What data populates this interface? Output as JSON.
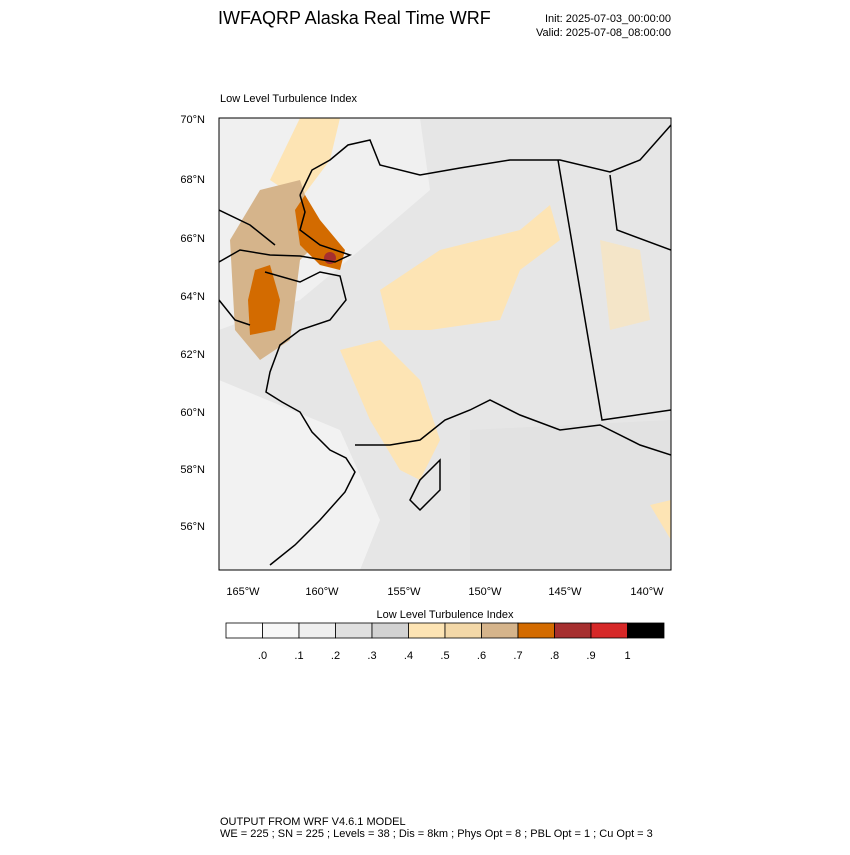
{
  "header": {
    "title": "IWFAQRP Alaska Real Time WRF",
    "init": "Init: 2025-07-03_00:00:00",
    "valid": "Valid: 2025-07-08_08:00:00"
  },
  "map": {
    "title": "Low Level Turbulence Index",
    "lat_labels": [
      "70°N",
      "68°N",
      "66°N",
      "64°N",
      "62°N",
      "60°N",
      "58°N",
      "56°N"
    ],
    "lon_labels": [
      "165°W",
      "160°W",
      "155°W",
      "150°W",
      "145°W",
      "140°W"
    ]
  },
  "colorbar": {
    "title": "Low Level Turbulence Index",
    "colors": [
      "#ffffff",
      "#f7f7f7",
      "#efefef",
      "#e0e0e0",
      "#d2d2d2",
      "#fde4b4",
      "#f3d8a8",
      "#d5b48b",
      "#d36b00",
      "#a62f2f",
      "#d62828",
      "#000000"
    ],
    "labels": [
      ".0",
      ".1",
      ".2",
      ".3",
      ".4",
      ".5",
      ".6",
      ".7",
      ".8",
      ".9",
      "1"
    ]
  },
  "footer": {
    "line1": "OUTPUT FROM WRF V4.6.1 MODEL",
    "line2": "WE = 225 ; SN = 225 ; Levels = 38 ; Dis = 8km ; Phys Opt = 8 ; PBL Opt = 1 ; Cu Opt = 3"
  }
}
